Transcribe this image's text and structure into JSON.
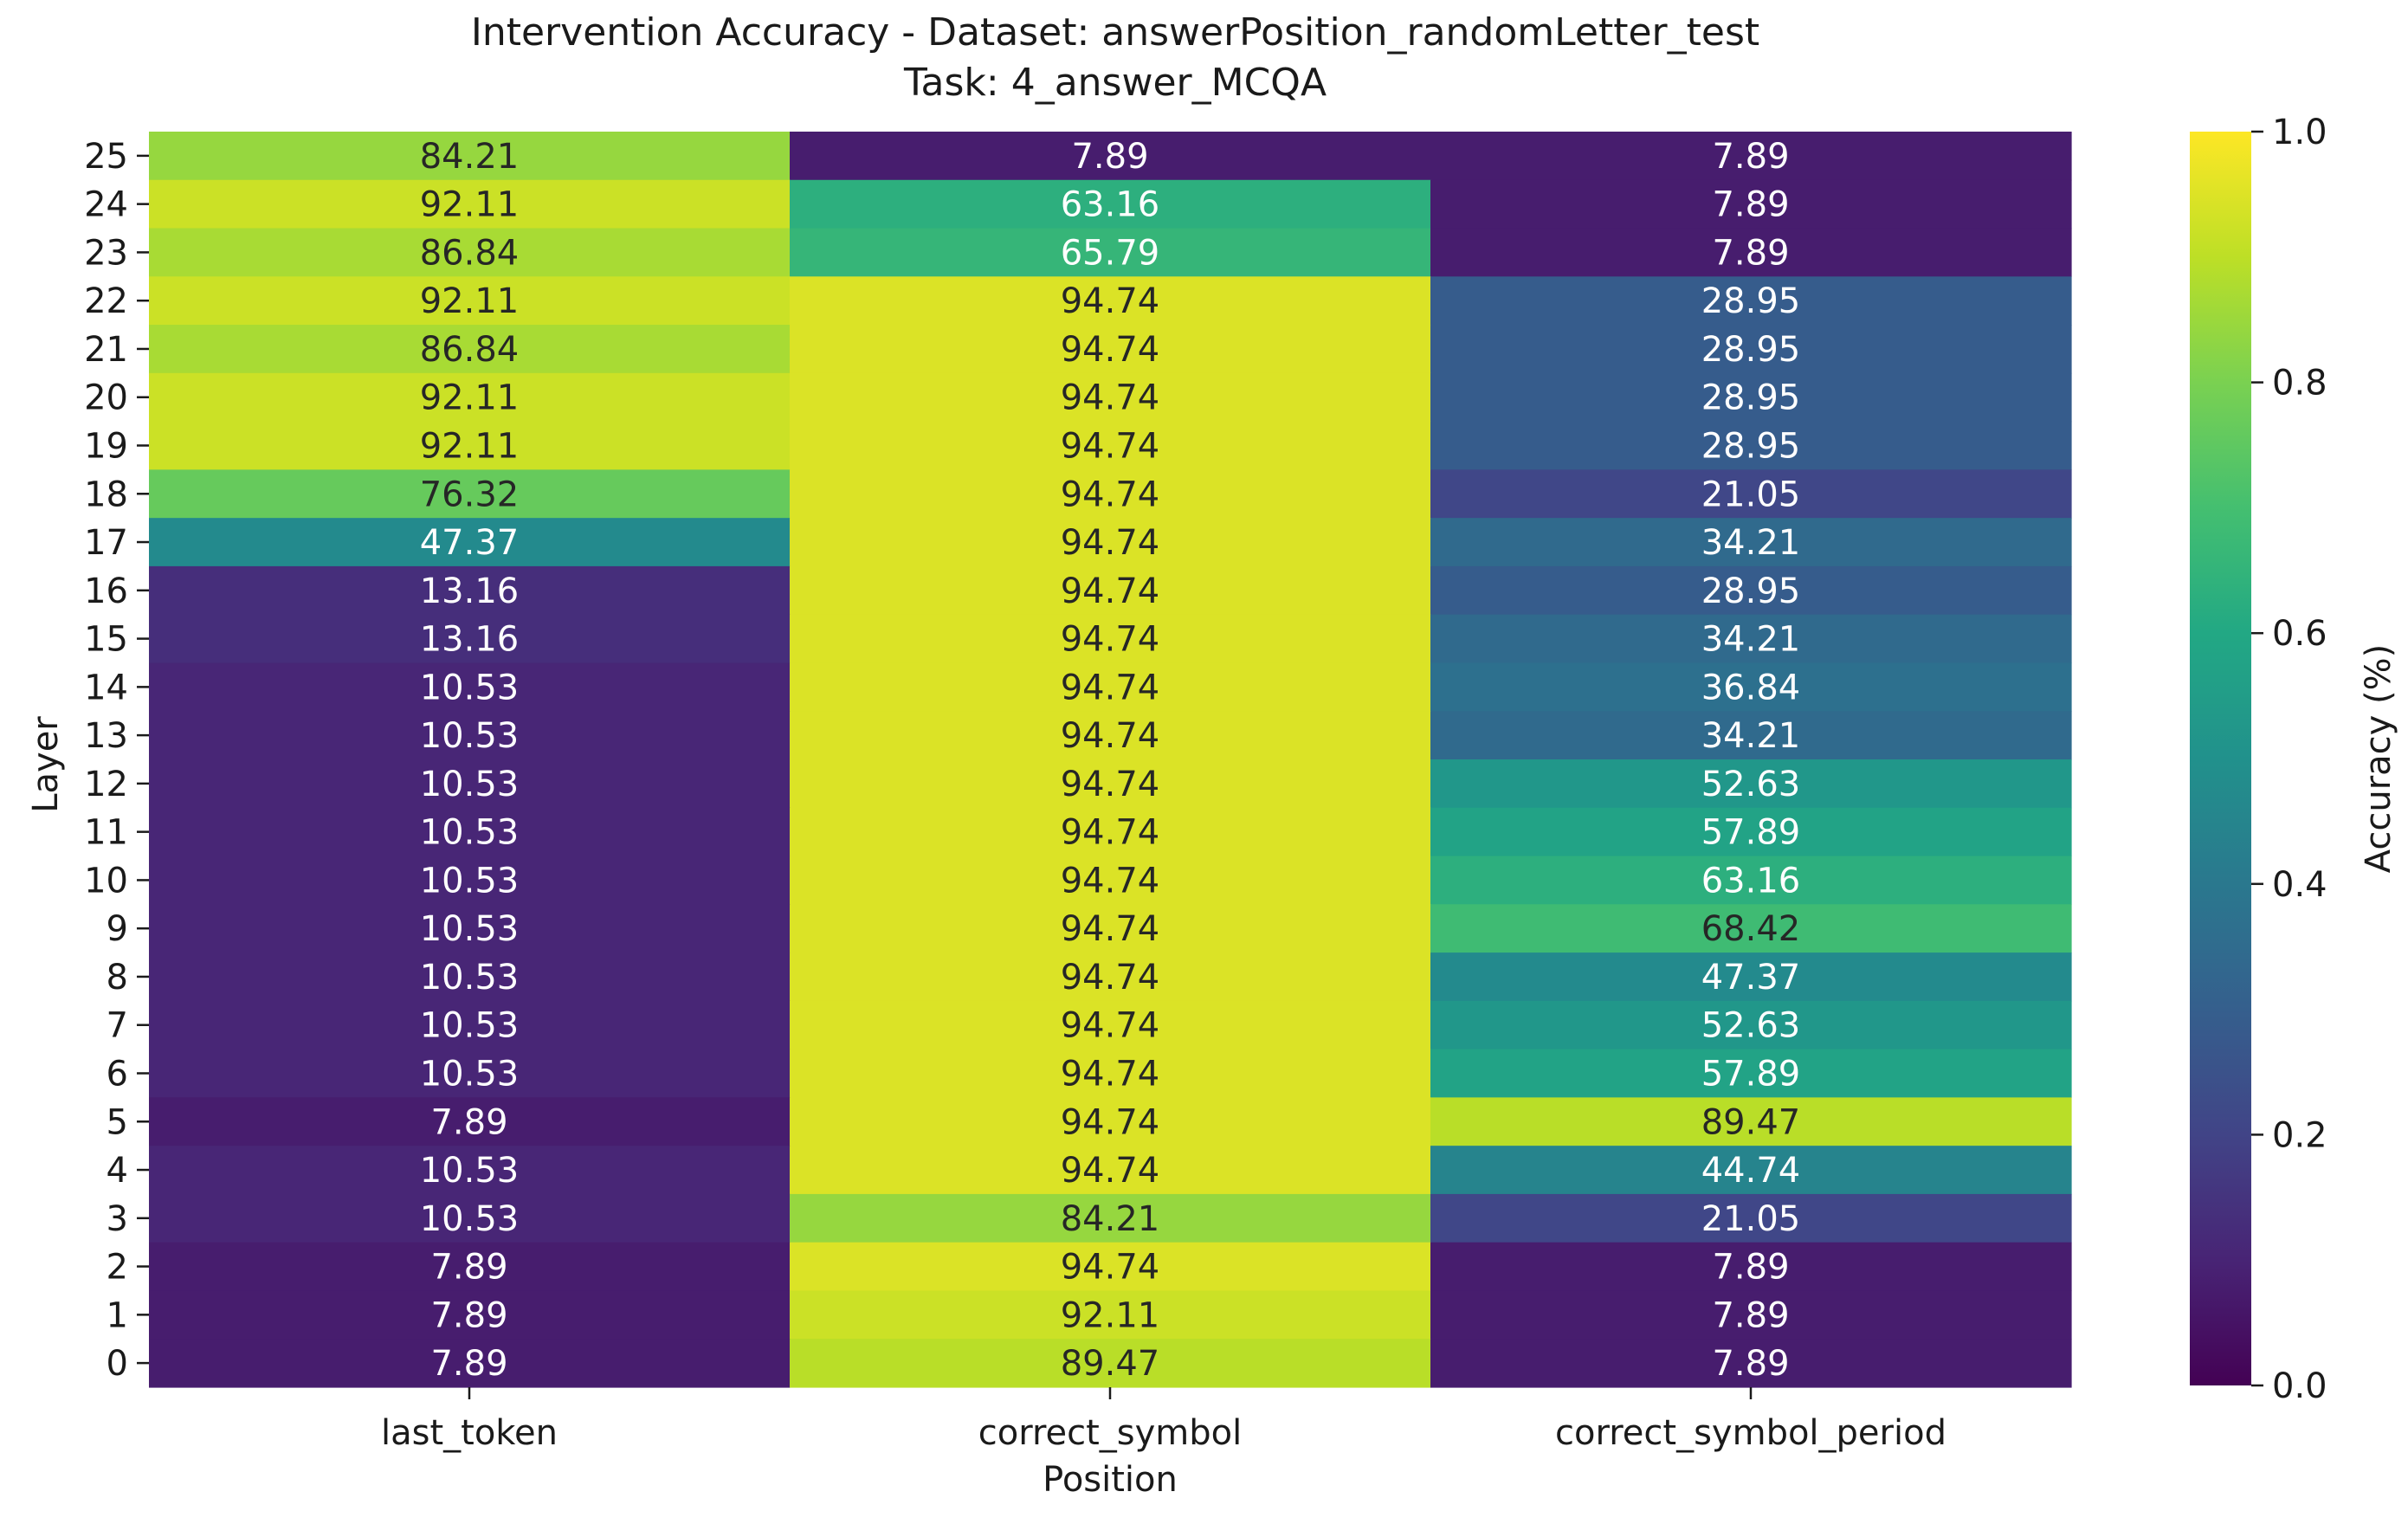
{
  "chart_data": {
    "type": "heatmap",
    "title": "Intervention Accuracy - Dataset: answerPosition_randomLetter_test",
    "subtitle": "Task: 4_answer_MCQA",
    "xlabel": "Position",
    "ylabel": "Layer",
    "colorbar_label": "Accuracy (%)",
    "colormap": "viridis",
    "value_range": [
      0.0,
      1.0
    ],
    "colorbar_ticks": [
      "0.0",
      "0.2",
      "0.4",
      "0.6",
      "0.8",
      "1.0"
    ],
    "columns": [
      "last_token",
      "correct_symbol",
      "correct_symbol_period"
    ],
    "rows": [
      {
        "layer": "25",
        "values": [
          84.21,
          7.89,
          7.89
        ]
      },
      {
        "layer": "24",
        "values": [
          92.11,
          63.16,
          7.89
        ]
      },
      {
        "layer": "23",
        "values": [
          86.84,
          65.79,
          7.89
        ]
      },
      {
        "layer": "22",
        "values": [
          92.11,
          94.74,
          28.95
        ]
      },
      {
        "layer": "21",
        "values": [
          86.84,
          94.74,
          28.95
        ]
      },
      {
        "layer": "20",
        "values": [
          92.11,
          94.74,
          28.95
        ]
      },
      {
        "layer": "19",
        "values": [
          92.11,
          94.74,
          28.95
        ]
      },
      {
        "layer": "18",
        "values": [
          76.32,
          94.74,
          21.05
        ]
      },
      {
        "layer": "17",
        "values": [
          47.37,
          94.74,
          34.21
        ]
      },
      {
        "layer": "16",
        "values": [
          13.16,
          94.74,
          28.95
        ]
      },
      {
        "layer": "15",
        "values": [
          13.16,
          94.74,
          34.21
        ]
      },
      {
        "layer": "14",
        "values": [
          10.53,
          94.74,
          36.84
        ]
      },
      {
        "layer": "13",
        "values": [
          10.53,
          94.74,
          34.21
        ]
      },
      {
        "layer": "12",
        "values": [
          10.53,
          94.74,
          52.63
        ]
      },
      {
        "layer": "11",
        "values": [
          10.53,
          94.74,
          57.89
        ]
      },
      {
        "layer": "10",
        "values": [
          10.53,
          94.74,
          63.16
        ]
      },
      {
        "layer": "9",
        "values": [
          10.53,
          94.74,
          68.42
        ]
      },
      {
        "layer": "8",
        "values": [
          10.53,
          94.74,
          47.37
        ]
      },
      {
        "layer": "7",
        "values": [
          10.53,
          94.74,
          52.63
        ]
      },
      {
        "layer": "6",
        "values": [
          10.53,
          94.74,
          57.89
        ]
      },
      {
        "layer": "5",
        "values": [
          7.89,
          94.74,
          89.47
        ]
      },
      {
        "layer": "4",
        "values": [
          10.53,
          94.74,
          44.74
        ]
      },
      {
        "layer": "3",
        "values": [
          10.53,
          84.21,
          21.05
        ]
      },
      {
        "layer": "2",
        "values": [
          7.89,
          94.74,
          7.89
        ]
      },
      {
        "layer": "1",
        "values": [
          7.89,
          92.11,
          7.89
        ]
      },
      {
        "layer": "0",
        "values": [
          7.89,
          89.47,
          7.89
        ]
      }
    ]
  }
}
